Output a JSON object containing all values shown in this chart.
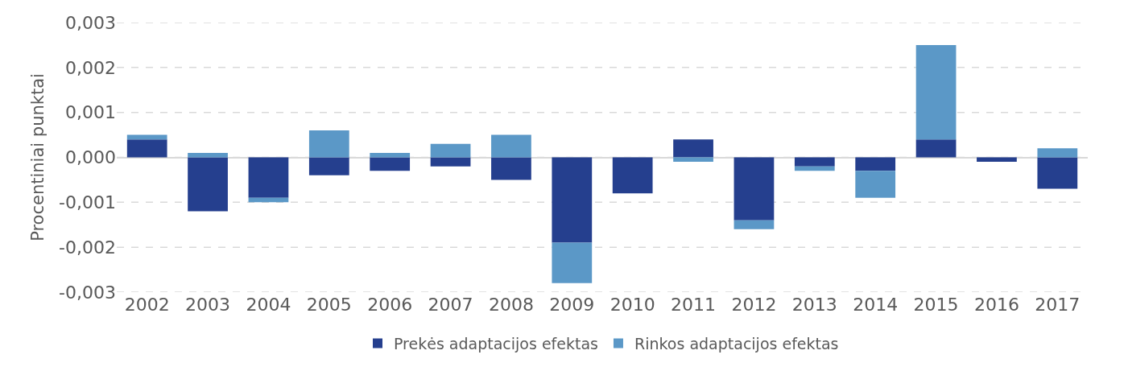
{
  "chart_data": {
    "type": "bar",
    "stacked": true,
    "ylabel": "Procentiniai punktai",
    "categories": [
      "2002",
      "2003",
      "2004",
      "2005",
      "2006",
      "2007",
      "2008",
      "2009",
      "2010",
      "2011",
      "2012",
      "2013",
      "2014",
      "2015",
      "2016",
      "2017"
    ],
    "series": [
      {
        "name": "Prekės adaptacijos efektas",
        "color": "#253f8e",
        "values": [
          0.0004,
          -0.0012,
          -0.0009,
          -0.0004,
          -0.0003,
          -0.0002,
          -0.0005,
          -0.0019,
          -0.0008,
          0.0004,
          -0.0014,
          -0.0002,
          -0.0003,
          0.0004,
          -0.0001,
          -0.0007
        ]
      },
      {
        "name": "Rinkos adaptacijos efektas",
        "color": "#5b98c7",
        "values": [
          0.0001,
          0.0001,
          -0.0001,
          0.0006,
          0.0001,
          0.0003,
          0.0005,
          -0.0009,
          0,
          -0.0001,
          -0.0002,
          -0.0001,
          -0.0006,
          0.0021,
          0,
          0.0002
        ]
      }
    ],
    "ylim": [
      -0.003,
      0.003
    ],
    "yticks": [
      {
        "value": -0.003,
        "label": "-0,003"
      },
      {
        "value": -0.002,
        "label": "-0,002"
      },
      {
        "value": -0.001,
        "label": "-0,001"
      },
      {
        "value": 0,
        "label": "0,000"
      },
      {
        "value": 0.001,
        "label": "0,001"
      },
      {
        "value": 0.002,
        "label": "0,002"
      },
      {
        "value": 0.003,
        "label": "0,003"
      }
    ],
    "grid": "y",
    "legend": "bottom"
  }
}
